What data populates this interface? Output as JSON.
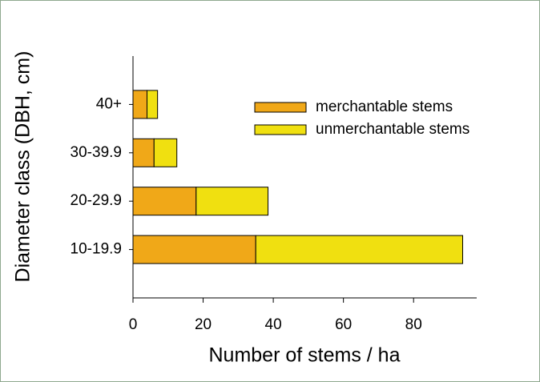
{
  "chart_data": {
    "type": "stacked_barh",
    "categories": [
      "10-19.9",
      "20-29.9",
      "30-39.9",
      "40+"
    ],
    "series": [
      {
        "name": "merchantable stems",
        "color": "#f0a818",
        "values": [
          35,
          18,
          6,
          4
        ]
      },
      {
        "name": "unmerchantable stems",
        "color": "#f0e010",
        "values": [
          59,
          20.5,
          6.5,
          3
        ]
      }
    ],
    "xlabel": "Number of stems / ha",
    "ylabel": "Diameter class (DBH, cm)",
    "xlim": [
      0,
      98
    ],
    "xticks": [
      0,
      20,
      40,
      60,
      80
    ],
    "legend": "upper right"
  }
}
